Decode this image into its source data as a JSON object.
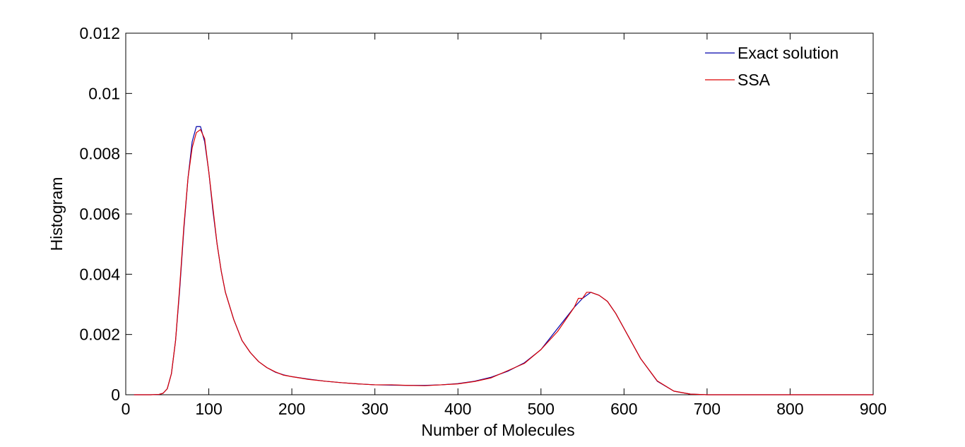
{
  "chart_data": {
    "type": "line",
    "title": "",
    "xlabel": "Number of Molecules",
    "ylabel": "Histogram",
    "xlim": [
      0,
      900
    ],
    "ylim": [
      0,
      0.012
    ],
    "xticks": [
      0,
      100,
      200,
      300,
      400,
      500,
      600,
      700,
      800,
      900
    ],
    "xtick_labels": [
      "0",
      "100",
      "200",
      "300",
      "400",
      "500",
      "600",
      "700",
      "800",
      "900"
    ],
    "yticks": [
      0,
      0.002,
      0.004,
      0.006,
      0.008,
      0.01,
      0.012
    ],
    "ytick_labels": [
      "0",
      "0.002",
      "0.004",
      "0.006",
      "0.008",
      "0.01",
      "0.012"
    ],
    "grid": false,
    "legend_position": "top-right",
    "series": [
      {
        "name": "Exact solution",
        "color": "#0000aa",
        "x": [
          10,
          30,
          40,
          45,
          50,
          55,
          60,
          65,
          70,
          75,
          80,
          85,
          90,
          95,
          100,
          105,
          110,
          115,
          120,
          130,
          140,
          150,
          160,
          170,
          180,
          190,
          200,
          220,
          240,
          260,
          280,
          300,
          320,
          340,
          360,
          380,
          400,
          420,
          440,
          460,
          480,
          500,
          520,
          540,
          550,
          560,
          570,
          580,
          590,
          600,
          620,
          640,
          660,
          680,
          700,
          720,
          750,
          800,
          850,
          900
        ],
        "y": [
          0,
          0,
          1e-05,
          5e-05,
          0.0002,
          0.0007,
          0.0018,
          0.0035,
          0.0055,
          0.0072,
          0.0084,
          0.0089,
          0.0089,
          0.0084,
          0.0074,
          0.0061,
          0.005,
          0.0041,
          0.0034,
          0.0025,
          0.0018,
          0.0014,
          0.0011,
          0.0009,
          0.00075,
          0.00066,
          0.0006,
          0.00052,
          0.00045,
          0.0004,
          0.00036,
          0.00033,
          0.00032,
          0.00031,
          0.00031,
          0.00033,
          0.00037,
          0.00045,
          0.00058,
          0.00078,
          0.00106,
          0.0015,
          0.0022,
          0.0029,
          0.0032,
          0.0034,
          0.0033,
          0.0031,
          0.0027,
          0.0022,
          0.0012,
          0.00045,
          0.00012,
          2e-05,
          0,
          0,
          0,
          0,
          0,
          0
        ]
      },
      {
        "name": "SSA",
        "color": "#dd0000",
        "x": [
          10,
          30,
          40,
          45,
          50,
          55,
          60,
          65,
          70,
          75,
          80,
          85,
          90,
          95,
          100,
          105,
          110,
          115,
          120,
          130,
          140,
          150,
          160,
          170,
          180,
          190,
          200,
          220,
          240,
          260,
          280,
          300,
          320,
          340,
          360,
          380,
          400,
          420,
          440,
          460,
          480,
          500,
          520,
          540,
          545,
          550,
          555,
          560,
          570,
          580,
          590,
          600,
          620,
          640,
          660,
          680,
          700,
          720,
          750,
          800,
          850,
          900
        ],
        "y": [
          0,
          0,
          1e-05,
          5e-05,
          0.0002,
          0.0007,
          0.0018,
          0.0036,
          0.0056,
          0.0072,
          0.0082,
          0.0087,
          0.0088,
          0.0085,
          0.0074,
          0.0062,
          0.005,
          0.0041,
          0.0034,
          0.0025,
          0.0018,
          0.0014,
          0.0011,
          0.0009,
          0.00076,
          0.00065,
          0.0006,
          0.00051,
          0.00045,
          0.0004,
          0.00036,
          0.00033,
          0.00033,
          0.00031,
          0.0003,
          0.00033,
          0.00036,
          0.00044,
          0.00056,
          0.0008,
          0.00104,
          0.0015,
          0.0021,
          0.0029,
          0.0032,
          0.0032,
          0.0034,
          0.0034,
          0.0033,
          0.0031,
          0.0027,
          0.0022,
          0.0012,
          0.00046,
          0.00012,
          2e-05,
          0,
          0,
          0,
          0,
          0,
          0
        ]
      }
    ]
  }
}
